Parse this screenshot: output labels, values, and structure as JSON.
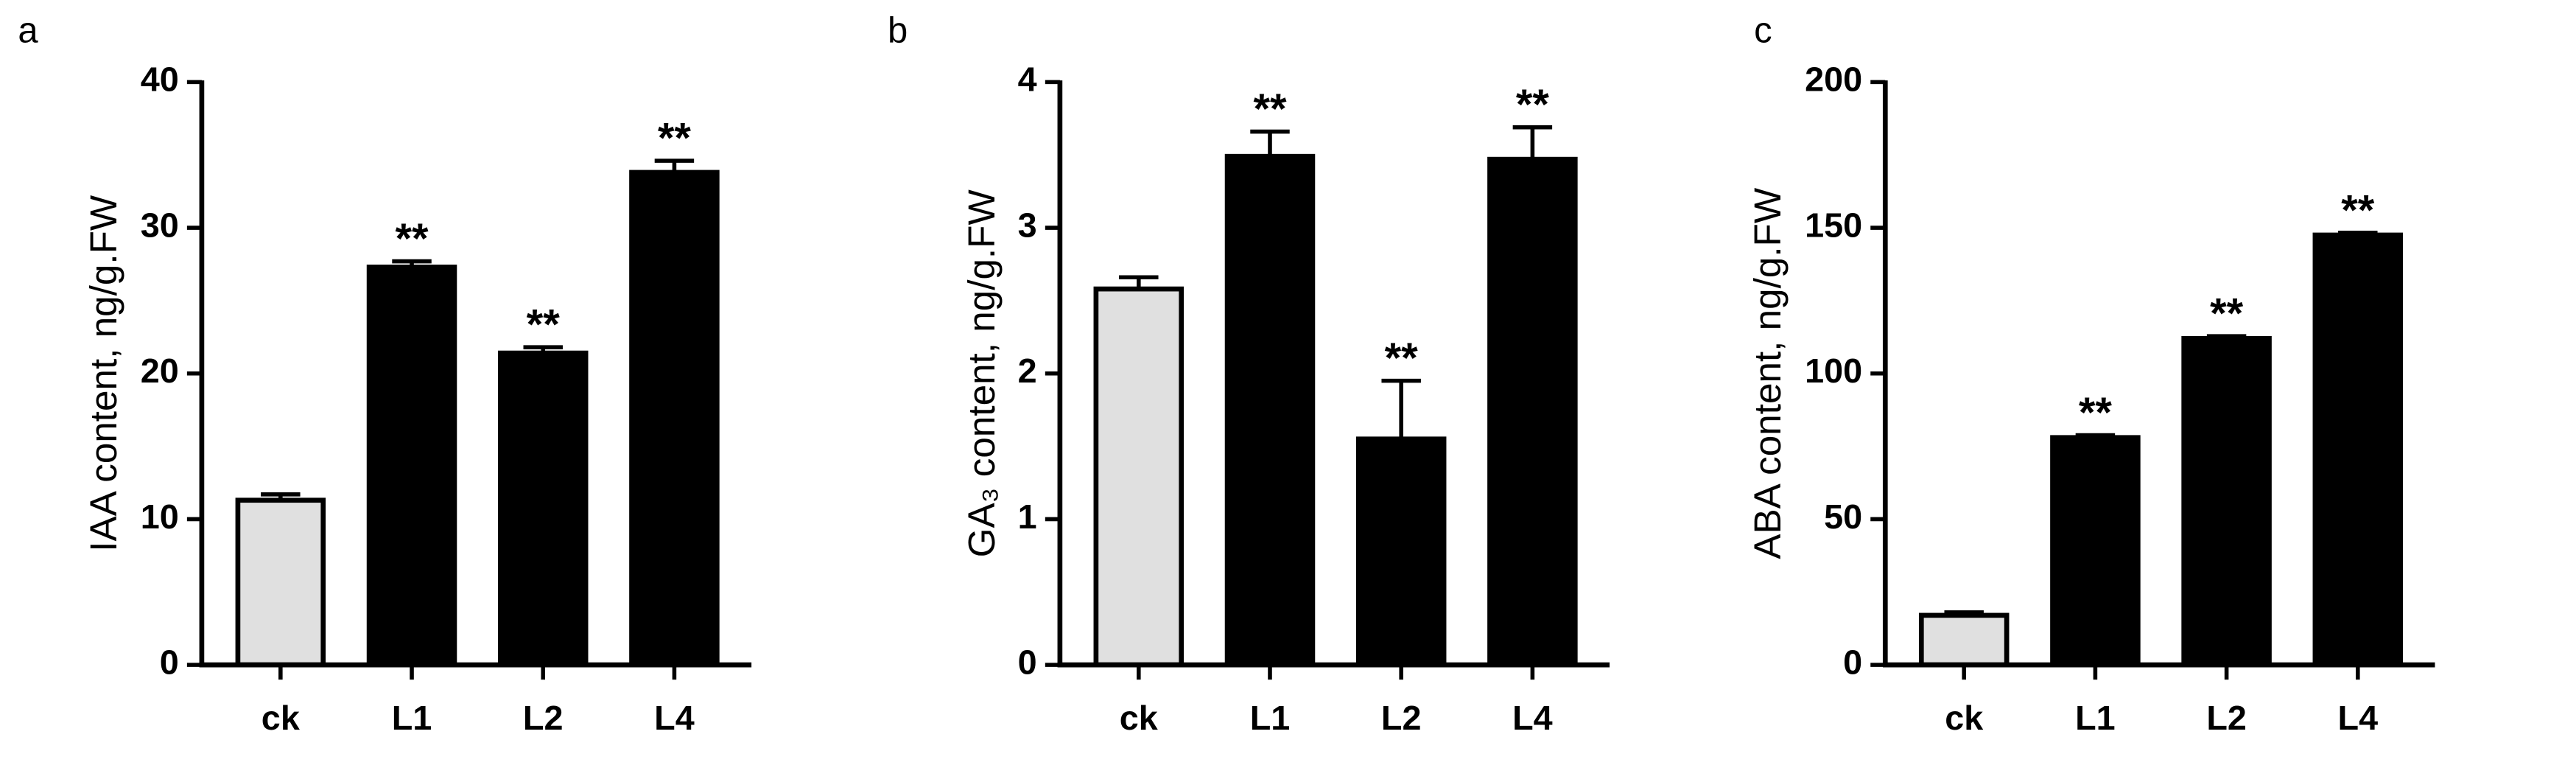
{
  "chart_data": [
    {
      "type": "bar",
      "panel_label": "a",
      "ylabel": "IAA content,  ng/g.FW",
      "categories": [
        "ck",
        "L1",
        "L2",
        "L4"
      ],
      "values": [
        11.3,
        27.3,
        21.4,
        33.8
      ],
      "errors": [
        0.4,
        0.4,
        0.4,
        0.8
      ],
      "colors": [
        "#e0e0e0",
        "#000000",
        "#000000",
        "#000000"
      ],
      "annotations": [
        null,
        "**",
        "**",
        "**"
      ],
      "ylim": [
        0,
        40
      ],
      "yticks": [
        0,
        10,
        20,
        30,
        40
      ]
    },
    {
      "type": "bar",
      "panel_label": "b",
      "ylabel": "GA₃ content,  ng/g.FW",
      "categories": [
        "ck",
        "L1",
        "L2",
        "L4"
      ],
      "values": [
        2.58,
        3.49,
        1.55,
        3.47
      ],
      "errors": [
        0.08,
        0.17,
        0.4,
        0.22
      ],
      "colors": [
        "#e0e0e0",
        "#000000",
        "#000000",
        "#000000"
      ],
      "annotations": [
        null,
        "**",
        "**",
        "**"
      ],
      "ylim": [
        0,
        4
      ],
      "yticks": [
        0,
        1,
        2,
        3,
        4
      ]
    },
    {
      "type": "bar",
      "panel_label": "c",
      "ylabel": "ABA content,  ng/g.FW",
      "categories": [
        "ck",
        "L1",
        "L2",
        "L4"
      ],
      "values": [
        17,
        78,
        112,
        147.5
      ],
      "errors": [
        1,
        0.8,
        0.8,
        0.8
      ],
      "colors": [
        "#e0e0e0",
        "#000000",
        "#000000",
        "#000000"
      ],
      "annotations": [
        null,
        "**",
        "**",
        "**"
      ],
      "ylim": [
        0,
        200
      ],
      "yticks": [
        0,
        50,
        100,
        150,
        200
      ]
    }
  ]
}
